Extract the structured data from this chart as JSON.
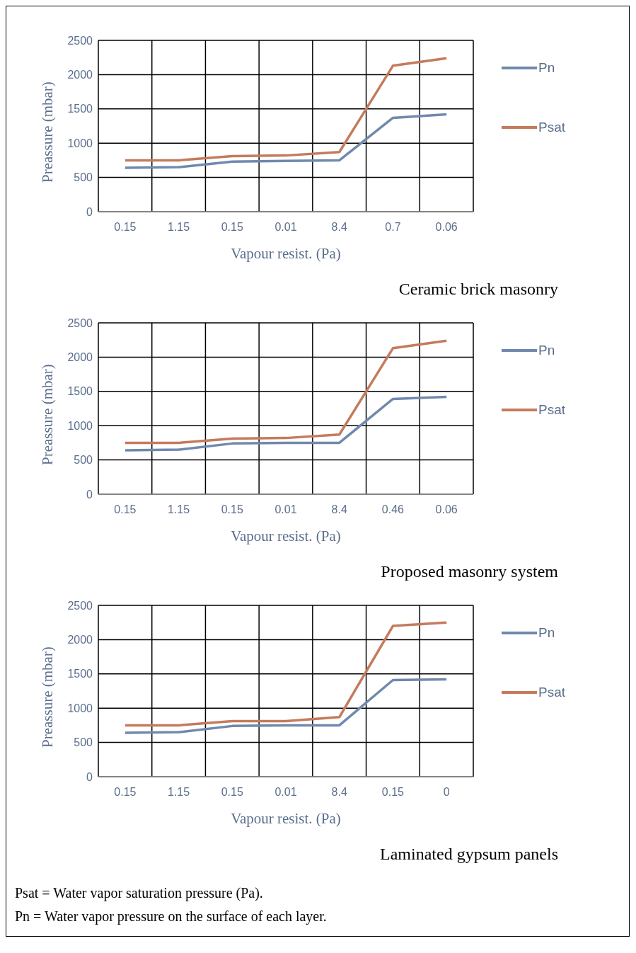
{
  "chart_data": [
    {
      "type": "line",
      "title": "Ceramic brick masonry",
      "xlabel": "Vapour resist. (Pa)",
      "ylabel": "Preassure (mbar)",
      "categories": [
        "0.15",
        "1.15",
        "0.15",
        "0.01",
        "8.4",
        "0.7",
        "0.06"
      ],
      "series": [
        {
          "name": "Pn",
          "color": "#7089ad",
          "values": [
            640,
            650,
            730,
            740,
            750,
            1370,
            1420
          ]
        },
        {
          "name": "Psat",
          "color": "#c47b5c",
          "values": [
            750,
            750,
            810,
            820,
            870,
            2130,
            2240
          ]
        }
      ],
      "ylim": [
        0,
        2500
      ],
      "yticks": [
        0,
        500,
        1000,
        1500,
        2000,
        2500
      ],
      "grid": true,
      "legend": "right",
      "marker": "none",
      "line_style": "solid"
    },
    {
      "type": "line",
      "title": "Proposed masonry system",
      "xlabel": "Vapour resist. (Pa)",
      "ylabel": "Preassure (mbar)",
      "categories": [
        "0.15",
        "1.15",
        "0.15",
        "0.01",
        "8.4",
        "0.46",
        "0.06"
      ],
      "series": [
        {
          "name": "Pn",
          "color": "#7089ad",
          "values": [
            640,
            650,
            740,
            750,
            750,
            1390,
            1420
          ]
        },
        {
          "name": "Psat",
          "color": "#c47b5c",
          "values": [
            750,
            750,
            810,
            820,
            870,
            2130,
            2240
          ]
        }
      ],
      "ylim": [
        0,
        2500
      ],
      "yticks": [
        0,
        500,
        1000,
        1500,
        2000,
        2500
      ],
      "grid": true,
      "legend": "right",
      "marker": "none",
      "line_style": "solid"
    },
    {
      "type": "line",
      "title": "Laminated gypsum panels",
      "xlabel": "Vapour resist. (Pa)",
      "ylabel": "Preassure (mbar)",
      "categories": [
        "0.15",
        "1.15",
        "0.15",
        "0.01",
        "8.4",
        "0.15",
        "0"
      ],
      "series": [
        {
          "name": "Pn",
          "color": "#7089ad",
          "values": [
            640,
            650,
            740,
            750,
            750,
            1410,
            1420
          ]
        },
        {
          "name": "Psat",
          "color": "#c47b5c",
          "values": [
            750,
            750,
            810,
            810,
            870,
            2200,
            2250
          ]
        }
      ],
      "ylim": [
        0,
        2500
      ],
      "yticks": [
        0,
        500,
        1000,
        1500,
        2000,
        2500
      ],
      "grid": true,
      "legend": "right",
      "marker": "none",
      "line_style": "solid",
      "annotations": [
        "Psat = Water vapor saturation pressure (Pa).",
        "Pn = Water vapor pressure on the surface of each layer."
      ]
    }
  ]
}
